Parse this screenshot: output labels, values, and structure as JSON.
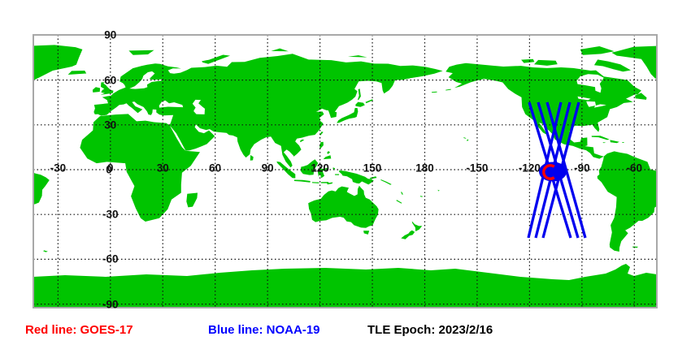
{
  "legend": {
    "red": "Red line: GOES-17",
    "blue": "Blue line: NOAA-19",
    "epoch": "TLE Epoch: 2023/2/16"
  },
  "satellites": {
    "goes17": {
      "name": "GOES-17",
      "line_color": "red"
    },
    "noaa19": {
      "name": "NOAA-19",
      "line_color": "blue"
    }
  },
  "tle_epoch": "2023/2/16",
  "colors": {
    "land": "#00c400",
    "sea": "#ffffff",
    "noaa19_track": "#0000ee",
    "goes17_marker": "#ff0000",
    "grid": "#111111",
    "frame": "#a8a8a8",
    "legend_red": "#ff0000",
    "legend_blue": "#0000ff",
    "legend_black": "#000000"
  },
  "map": {
    "lon_ticks": [
      "-30",
      "0",
      "30",
      "60",
      "90",
      "120",
      "150",
      "180",
      "-150",
      "-120",
      "-90",
      "-60"
    ],
    "lat_ticks": [
      "90",
      "60",
      "30",
      "0",
      "-30",
      "-60",
      "-90"
    ]
  }
}
